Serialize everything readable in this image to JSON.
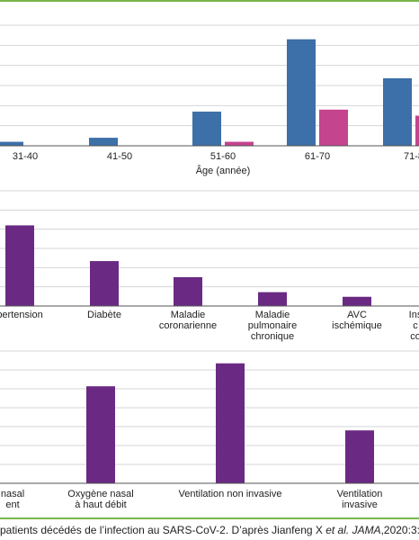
{
  "colors": {
    "frame_green": "#7ab648",
    "grid": "#d4d4d4",
    "axis": "#555555",
    "blue": "#3d6fa8",
    "pink": "#c4448e",
    "purple": "#6a2a84"
  },
  "chart_data": [
    {
      "type": "bar",
      "xlabel": "Âge (année)",
      "categories": [
        "31-40",
        "41-50",
        "51-60",
        "61-70",
        "71-8"
      ],
      "series": [
        {
          "color": "#3d6fa8",
          "values": [
            1,
            2,
            8.5,
            26.5,
            16.8
          ]
        },
        {
          "color": "#c4448e",
          "values": [
            0,
            0,
            1,
            9,
            7.5
          ]
        }
      ],
      "ylim": [
        0,
        30
      ],
      "grid": true
    },
    {
      "type": "bar",
      "categories": [
        "pertension",
        "Diabète",
        "Maladie coronarienne",
        "Maladie pulmonaire chronique",
        "AVC ischémique",
        "Ins c co"
      ],
      "series": [
        {
          "color": "#6a2a84",
          "values": [
            35,
            19.5,
            12.5,
            6,
            4,
            0
          ]
        }
      ],
      "ylim": [
        0,
        50
      ],
      "grid": true
    },
    {
      "type": "bar",
      "categories": [
        "nasal ent",
        "Oxygène nasal à haut débit",
        "Ventilation non invasive",
        "Ventilation invasive"
      ],
      "series": [
        {
          "color": "#6a2a84",
          "values": [
            0,
            55,
            68,
            30
          ]
        }
      ],
      "ylim": [
        0,
        75
      ],
      "grid": true
    }
  ],
  "caption": {
    "text_before": "patients décédés de l’infection au SARS-CoV-2. D’après Jianfeng X ",
    "text_italic": "et al. JAMA",
    "text_after": ",2020:3:e20"
  }
}
